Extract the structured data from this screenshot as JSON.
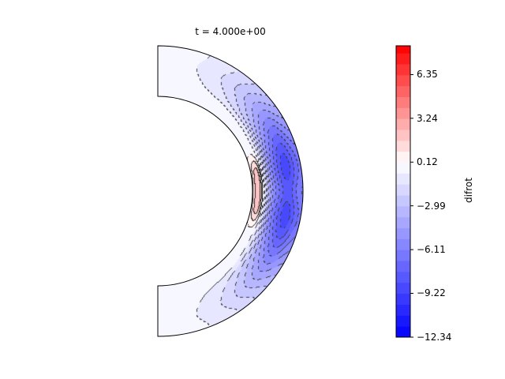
{
  "chart_data": {
    "type": "heatmap",
    "subtype": "filled contour on meridional half-annulus",
    "title": "t = 4.000e+00",
    "colorbar": {
      "label": "difrot",
      "ticks": [
        "−12.34",
        "−9.22",
        "−6.11",
        "−2.99",
        "0.12",
        "3.24",
        "6.35"
      ],
      "tick_values": [
        -12.34,
        -9.22,
        -6.11,
        -2.99,
        0.12,
        3.24,
        6.35
      ],
      "range": [
        -12.34,
        8.4
      ],
      "colormap": "bwr",
      "level_step": 0.778
    },
    "field_description_values": {
      "min_region": -9.2,
      "max_region": 2.6
    },
    "colors": {
      "low": "#0000ff",
      "mid": "#ffffff",
      "high": "#ff0000",
      "contour_line": "#000000"
    }
  }
}
